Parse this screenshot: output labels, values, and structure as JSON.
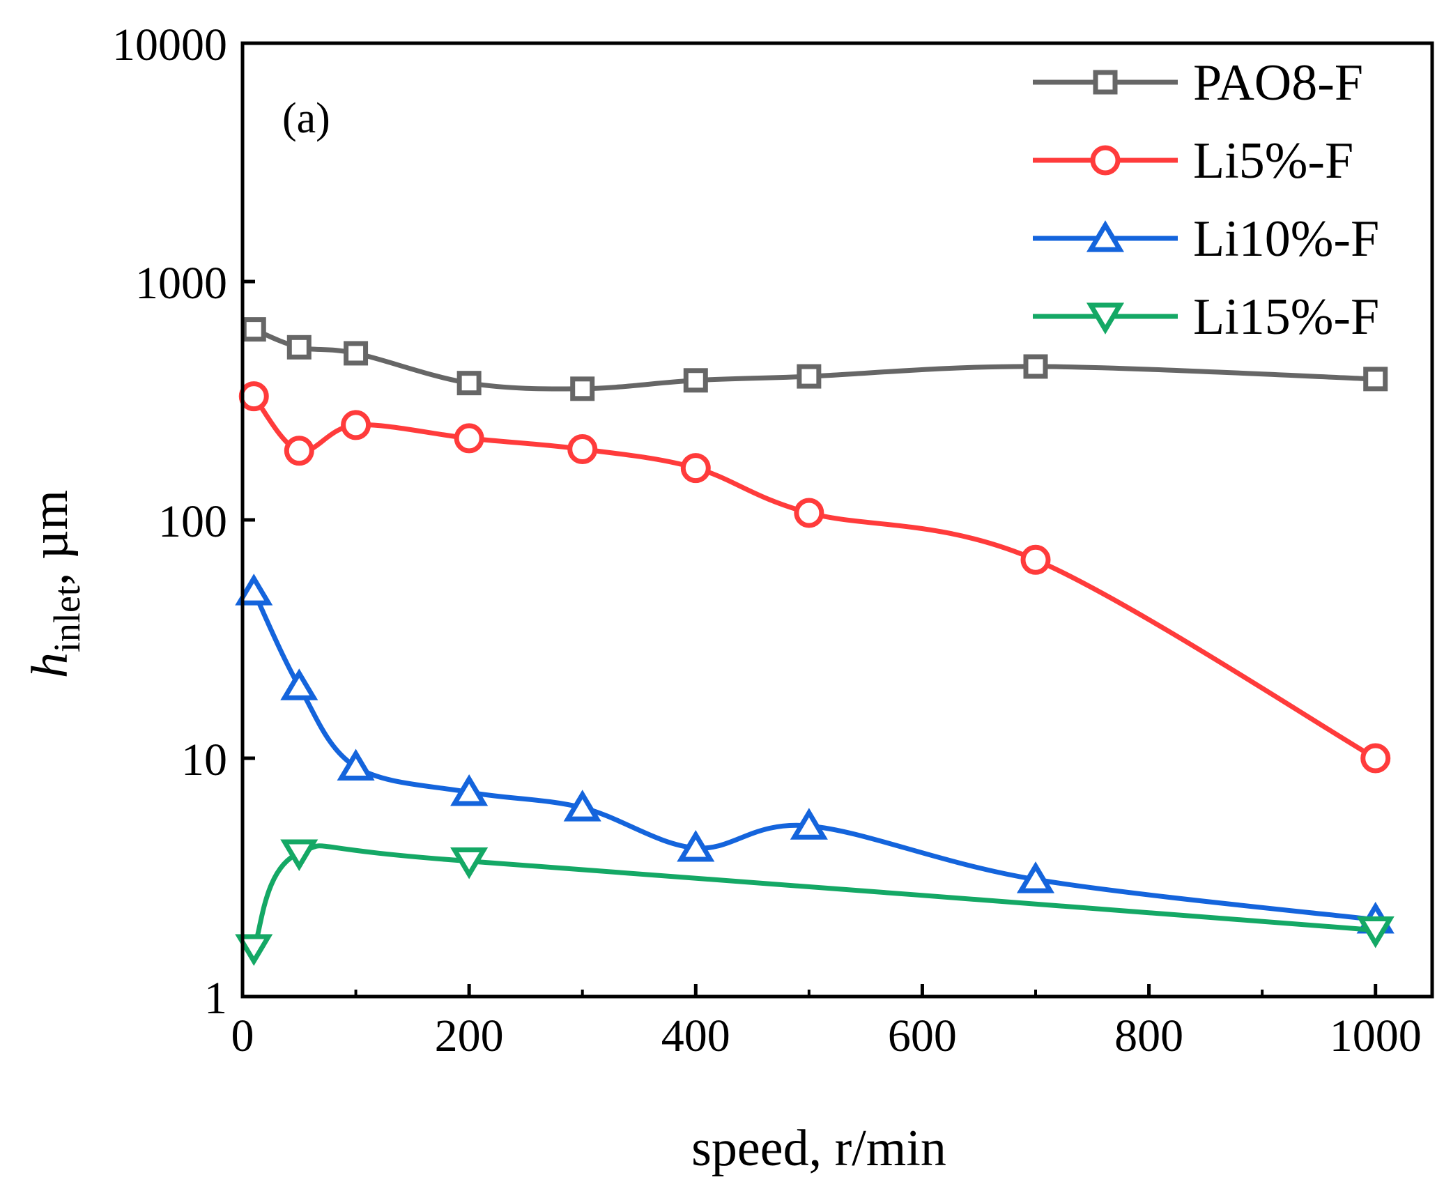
{
  "chart_data": {
    "type": "line",
    "panel_label": "(a)",
    "xlabel": "speed, r/min",
    "ylabel": {
      "main": "h",
      "subscript": "inlet",
      "suffix": ", µm"
    },
    "xlim": [
      0,
      1050
    ],
    "ylim": [
      1,
      10000
    ],
    "yscale": "log",
    "x_ticks": [
      0,
      200,
      400,
      600,
      800,
      1000
    ],
    "x_tick_labels": [
      "0",
      "200",
      "400",
      "600",
      "800",
      "1000"
    ],
    "y_ticks": [
      1,
      10,
      100,
      1000,
      10000
    ],
    "y_tick_labels": [
      "1",
      "10",
      "100",
      "1000",
      "10000"
    ],
    "legend_position": "top-right",
    "grid": false,
    "series": [
      {
        "name": "PAO8-F",
        "color": "#666666",
        "marker": "square",
        "x": [
          10,
          50,
          100,
          200,
          300,
          400,
          500,
          700,
          1000
        ],
        "y": [
          630,
          530,
          500,
          375,
          355,
          385,
          400,
          440,
          390
        ]
      },
      {
        "name": "Li5%-F",
        "color": "#ff3b3b",
        "marker": "circle",
        "x": [
          10,
          50,
          100,
          200,
          300,
          400,
          500,
          700,
          1000
        ],
        "y": [
          330,
          195,
          250,
          220,
          198,
          165,
          107,
          68,
          10
        ]
      },
      {
        "name": "Li10%-F",
        "color": "#1464dc",
        "marker": "triangle-up",
        "x": [
          10,
          50,
          100,
          200,
          300,
          400,
          500,
          700,
          1000
        ],
        "y": [
          50,
          20,
          9.2,
          7.2,
          6.2,
          4.2,
          5.2,
          3.1,
          2.1
        ]
      },
      {
        "name": "Li15%-F",
        "color": "#14a865",
        "marker": "triangle-down",
        "x": [
          10,
          50,
          200,
          1000
        ],
        "y": [
          1.6,
          4.0,
          3.7,
          1.9
        ]
      }
    ]
  }
}
